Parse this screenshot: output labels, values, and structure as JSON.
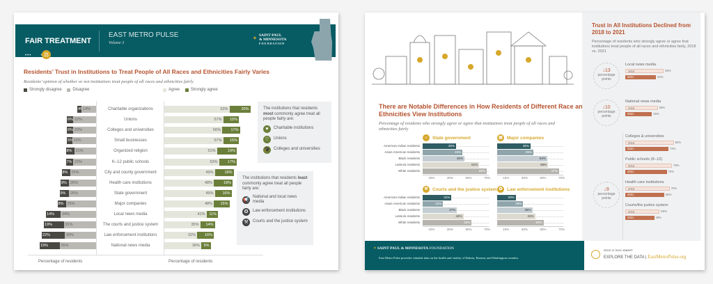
{
  "left": {
    "header": {
      "section": "FAIR TREATMENT",
      "series": "EAST METRO PULSE",
      "volume": "Volume 3",
      "foundation": [
        "SAINT PAUL",
        "& MINNESOTA",
        "FOUNDATION"
      ]
    },
    "title": "Residents’ Trust in Institutions to Treat People of All Races and Ethnicities Fairly Varies",
    "subtitle": "Residents’ opinion of whether or not institutions treat people of all races and ethnicities fairly",
    "legend": {
      "strongly_disagree": "Strongly disagree",
      "disagree": "Disagree",
      "agree": "Agree",
      "strongly_agree": "Strongly agree"
    },
    "axis_label_left": "Percentage of residents",
    "axis_label_right": "Percentage of residents",
    "colors": {
      "strongly_disagree": "#4a4843",
      "disagree": "#b9b8b3",
      "agree": "#e4e6dc",
      "strongly_agree": "#6b7f3a"
    },
    "most_callout": {
      "pre": "The institutions that residents ",
      "bold": "most",
      "post": " commonly agree treat all people fairly are:",
      "items": [
        "Charitable institutions",
        "Unions",
        "Colleges and universities"
      ]
    },
    "least_callout": {
      "pre": "The institutions that residents ",
      "bold": "least",
      "post": " commonly agree treat all people fairly are:",
      "items": [
        "National and local news media",
        "Law enforcement institutions",
        "Courts and the justice system"
      ]
    }
  },
  "chart_data": [
    {
      "type": "bar",
      "title": "Residents’ Trust in Institutions to Treat People of All Races and Ethnicities Fairly Varies",
      "xlabel": "Percentage of residents",
      "categories": [
        "Charitable organizations",
        "Unions",
        "Colleges and universities",
        "Small businesses",
        "Organized religion",
        "K–12 public schools",
        "City and county government",
        "Health care institutions",
        "State government",
        "Major companies",
        "Local news media",
        "The courts and justice system",
        "Law enforcement institutions",
        "National news media"
      ],
      "series": [
        {
          "name": "Strongly disagree",
          "values": [
            4,
            6,
            6,
            5,
            8,
            7,
            8,
            8,
            9,
            8,
            14,
            19,
            22,
            19
          ]
        },
        {
          "name": "Disagree",
          "values": [
            14,
            22,
            22,
            23,
            21,
            22,
            25,
            26,
            26,
            29,
            34,
            31,
            30,
            35
          ]
        },
        {
          "name": "Agree",
          "values": [
            63,
            57,
            56,
            57,
            51,
            53,
            49,
            48,
            49,
            48,
            41,
            35,
            32,
            36
          ]
        },
        {
          "name": "Strongly agree",
          "values": [
            20,
            15,
            17,
            15,
            19,
            17,
            18,
            18,
            16,
            15,
            11,
            14,
            16,
            9
          ]
        }
      ]
    },
    {
      "type": "bar",
      "title": "State government",
      "categories": [
        "American Indian residents",
        "Asian American residents",
        "Black residents",
        "Latino/a residents",
        "White residents"
      ],
      "values": [
        36,
        43,
        45,
        61,
        69
      ],
      "xticks": [
        "10%",
        "30%",
        "50%",
        "70%"
      ],
      "xlim": [
        0,
        70
      ]
    },
    {
      "type": "bar",
      "title": "Major companies",
      "categories": [
        "American Indian residents",
        "Asian American residents",
        "Black residents",
        "Latino/a residents",
        "White residents"
      ],
      "values": [
        36,
        39,
        54,
        55,
        67
      ],
      "xticks": [
        "10%",
        "30%",
        "50%",
        "70%"
      ],
      "xlim": [
        0,
        70
      ]
    },
    {
      "type": "bar",
      "title": "Courts and the justice system",
      "categories": [
        "American Indian residents",
        "Asian American residents",
        "Black residents",
        "Latino/a residents",
        "White residents"
      ],
      "values": [
        31,
        22,
        37,
        44,
        53
      ],
      "xticks": [
        "10%",
        "30%",
        "50%",
        "70%"
      ],
      "xlim": [
        0,
        70
      ]
    },
    {
      "type": "bar",
      "title": "Law enforcement institutions",
      "categories": [
        "American Indian residents",
        "Asian American residents",
        "Black residents",
        "Latino/a residents",
        "White residents"
      ],
      "values": [
        20,
        28,
        38,
        41,
        50
      ],
      "xticks": [
        "10%",
        "30%",
        "50%",
        "70%"
      ],
      "xlim": [
        0,
        70
      ]
    },
    {
      "type": "bar",
      "title": "Trust in All Institutions Declined from 2018 to 2021",
      "categories": [
        "Local news media",
        "National news media",
        "Colleges & universities",
        "Public schools (K–12)",
        "Health care institutions",
        "Courts/the justice system"
      ],
      "series": [
        {
          "name": "2018",
          "values": [
            65,
            55,
            82,
            79,
            75,
            58
          ]
        },
        {
          "name": "2021",
          "values": [
            52,
            45,
            73,
            70,
            66,
            49
          ]
        }
      ]
    }
  ],
  "right": {
    "title": "There are Notable Differences in How Residents of Different Race and Ethnicities View Institutions",
    "subtitle": "Percentage of residents who strongly agree or agree that institutions treat people of all races and ethnicities fairly",
    "race_colors": [
      "#2f5c63",
      "#8fa5ab",
      "#c3cdd2",
      "#dcd9d0",
      "#b5b3ad"
    ],
    "sidebar": {
      "title": "Trust in All Institutions Declined from 2018 to 2021",
      "subtitle": "Percentage of residents who strongly agree or agree that institutions treat people of all races and ethnicities fairly, 2018 vs. 2021",
      "drops": [
        {
          "value": "13",
          "label": "percentage points"
        },
        {
          "value": "10",
          "label": "percentage points"
        },
        {
          "value": "9",
          "label": "percentage points"
        }
      ],
      "year_labels": [
        "2018",
        "2021"
      ]
    },
    "footer": {
      "foundation_bold": "SAINT PAUL & MINNESOTA",
      "foundation": "FOUNDATION",
      "text": "East Metro Pulse provides valuable data on the health and vitality of Dakota, Ramsey and Washington counties.",
      "want": "Want to learn ",
      "more": "more?",
      "explore": "EXPLORE THE DATA",
      "url": "EastMetroPulse.org"
    }
  }
}
